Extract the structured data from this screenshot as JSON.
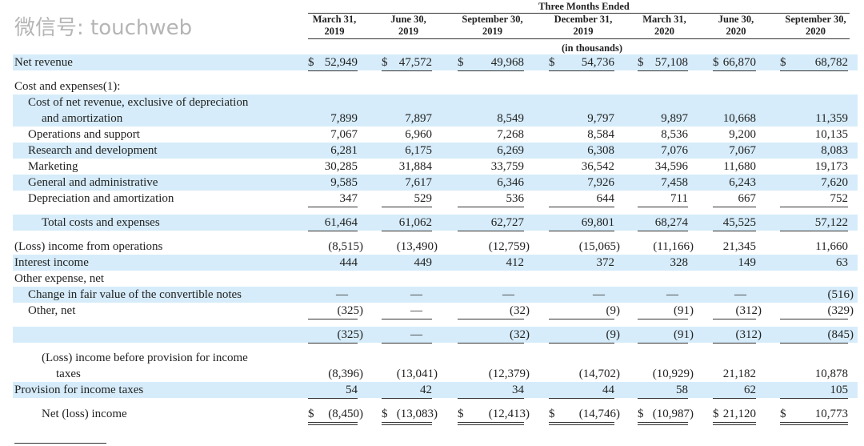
{
  "header": {
    "group_title": "Three Months Ended",
    "units": "(in thousands)",
    "columns": [
      {
        "line1": "March 31,",
        "line2": "2019"
      },
      {
        "line1": "June 30,",
        "line2": "2019"
      },
      {
        "line1": "September 30,",
        "line2": "2019"
      },
      {
        "line1": "December 31,",
        "line2": "2019"
      },
      {
        "line1": "March 31,",
        "line2": "2020"
      },
      {
        "line1": "June 30,",
        "line2": "2020"
      },
      {
        "line1": "September 30,",
        "line2": "2020"
      }
    ]
  },
  "colors": {
    "band": "#d6ecfa"
  },
  "rows": [
    {
      "label": "Net revenue",
      "indent": 0,
      "shaded": true,
      "currency": "$",
      "values": [
        "52,949",
        "47,572",
        "49,968",
        "54,736",
        "57,108",
        "66,870",
        "68,782"
      ],
      "rule": "single"
    },
    {
      "label": "Cost and expenses(1):",
      "indent": 0,
      "shaded": false,
      "values": []
    },
    {
      "label": "Cost of net revenue, exclusive of depreciation",
      "indent": 1,
      "shaded": true,
      "values": []
    },
    {
      "label": "and amortization",
      "indent": 2,
      "shaded": true,
      "values": [
        "7,899",
        "7,897",
        "8,549",
        "9,797",
        "9,897",
        "10,668",
        "11,359"
      ]
    },
    {
      "label": "Operations and support",
      "indent": 1,
      "shaded": false,
      "values": [
        "7,067",
        "6,960",
        "7,268",
        "8,584",
        "8,536",
        "9,200",
        "10,135"
      ]
    },
    {
      "label": "Research and development",
      "indent": 1,
      "shaded": true,
      "values": [
        "6,281",
        "6,175",
        "6,269",
        "6,308",
        "7,076",
        "7,067",
        "8,083"
      ]
    },
    {
      "label": "Marketing",
      "indent": 1,
      "shaded": false,
      "values": [
        "30,285",
        "31,884",
        "33,759",
        "36,542",
        "34,596",
        "11,680",
        "19,173"
      ]
    },
    {
      "label": "General and administrative",
      "indent": 1,
      "shaded": true,
      "values": [
        "9,585",
        "7,617",
        "6,346",
        "7,926",
        "7,458",
        "6,243",
        "7,620"
      ]
    },
    {
      "label": "Depreciation and amortization",
      "indent": 1,
      "shaded": false,
      "values": [
        "347",
        "529",
        "536",
        "644",
        "711",
        "667",
        "752"
      ],
      "rule": "single"
    },
    {
      "label": "Total costs and expenses",
      "indent": 2,
      "shaded": true,
      "values": [
        "61,464",
        "61,062",
        "62,727",
        "69,801",
        "68,274",
        "45,525",
        "57,122"
      ],
      "rule": "single"
    },
    {
      "label": "(Loss) income from operations",
      "indent": 0,
      "shaded": false,
      "values": [
        "(8,515)",
        "(13,490)",
        "(12,759)",
        "(15,065)",
        "(11,166)",
        "21,345",
        "11,660"
      ]
    },
    {
      "label": "Interest income",
      "indent": 0,
      "shaded": true,
      "values": [
        "444",
        "449",
        "412",
        "372",
        "328",
        "149",
        "63"
      ]
    },
    {
      "label": "Other expense, net",
      "indent": 0,
      "shaded": false,
      "values": []
    },
    {
      "label": "Change in fair value of the convertible notes",
      "indent": 1,
      "shaded": true,
      "values": [
        "—",
        "—",
        "—",
        "—",
        "—",
        "—",
        "(516)"
      ]
    },
    {
      "label": "Other, net",
      "indent": 1,
      "shaded": false,
      "values": [
        "(325)",
        "—",
        "(32)",
        "(9)",
        "(91)",
        "(312)",
        "(329)"
      ],
      "rule": "single"
    },
    {
      "label": "",
      "indent": 0,
      "shaded": true,
      "values": [
        "(325)",
        "—",
        "(32)",
        "(9)",
        "(91)",
        "(312)",
        "(845)"
      ],
      "rule": "single"
    },
    {
      "label": "(Loss) income before provision for income",
      "indent": 2,
      "shaded": false,
      "values": []
    },
    {
      "label": "taxes",
      "indent": 3,
      "shaded": false,
      "values": [
        "(8,396)",
        "(13,041)",
        "(12,379)",
        "(14,702)",
        "(10,929)",
        "21,182",
        "10,878"
      ]
    },
    {
      "label": "Provision for income taxes",
      "indent": 0,
      "shaded": true,
      "values": [
        "54",
        "42",
        "34",
        "44",
        "58",
        "62",
        "105"
      ],
      "rule": "single"
    },
    {
      "label": "Net (loss) income",
      "indent": 2,
      "shaded": false,
      "currency": "$",
      "values": [
        "(8,450)",
        "(13,083)",
        "(12,413)",
        "(14,746)",
        "(10,987)",
        "21,120",
        "10,773"
      ],
      "rule": "double"
    }
  ],
  "watermark": "微信号: touchweb"
}
